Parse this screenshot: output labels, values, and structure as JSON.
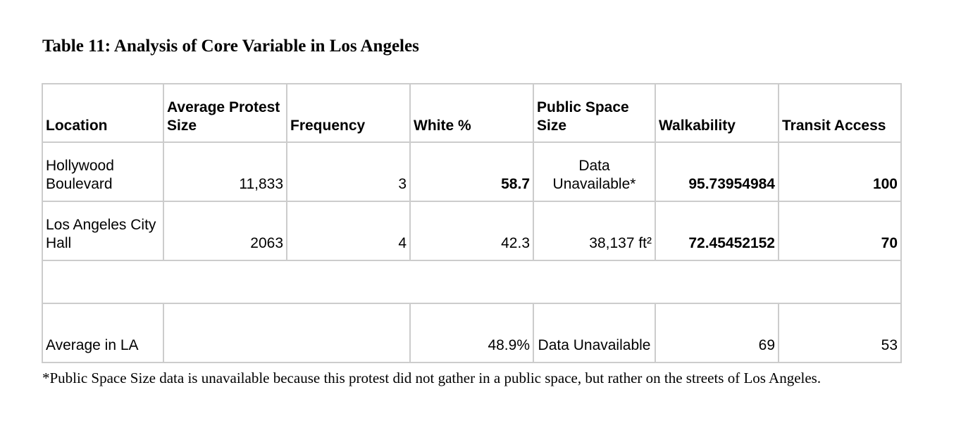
{
  "title": "Table 11: Analysis of Core Variable in Los Angeles",
  "table": {
    "headers": [
      "Location",
      "Average Protest Size",
      "Frequency",
      "White %",
      "Public Space Size",
      "Walkability",
      "Transit Access"
    ],
    "rows": [
      {
        "location": "Hollywood Boulevard",
        "avg_protest_size": "11,833",
        "frequency": "3",
        "white_pct": "58.7",
        "public_space_size": "Data Unavailable*",
        "walkability": "95.73954984",
        "transit_access": "100"
      },
      {
        "location": "Los Angeles City Hall",
        "avg_protest_size": "2063",
        "frequency": "4",
        "white_pct": "42.3",
        "public_space_size": "38,137 ft²",
        "walkability": "72.45452152",
        "transit_access": "70"
      },
      {
        "location": "Average in LA",
        "avg_protest_size": "",
        "frequency": "",
        "white_pct": "48.9%",
        "public_space_size": "Data Unavailable",
        "walkability": "69",
        "transit_access": "53"
      }
    ]
  },
  "footnote": "*Public Space Size data is unavailable because this protest did not gather in a public space, but rather on the streets of Los Angeles."
}
